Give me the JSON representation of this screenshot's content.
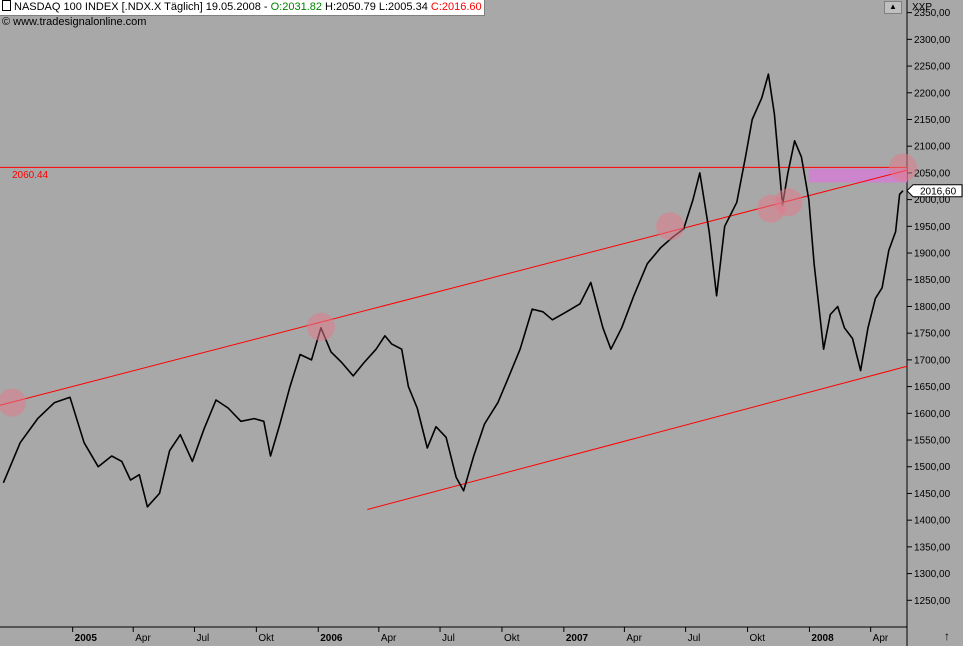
{
  "header": {
    "instrument": "NASDAQ 100 INDEX [.NDX.X  Täglich]",
    "date": "19.05.2008 -",
    "open": "O:2031.82",
    "high": "H:2050.79",
    "low": "L:2005.34",
    "close": "C:2016.60"
  },
  "source": "© www.tradesignalonline.com",
  "axis_tag": "XXP",
  "level_label": "2060.44",
  "colors": {
    "background": "#a8a8a8",
    "price": "#000000",
    "trendlines": "#ff0000",
    "markers": "#e07a8a",
    "zone": "#d27fd2"
  },
  "chart_data": {
    "type": "line",
    "title": "",
    "xlabel": "",
    "ylabel": "",
    "ylim": [
      1200,
      2385
    ],
    "yticks": [
      "1250,00",
      "1300,00",
      "1350,00",
      "1400,00",
      "1450,00",
      "1500,00",
      "1550,00",
      "1600,00",
      "1650,00",
      "1700,00",
      "1750,00",
      "1800,00",
      "1850,00",
      "1900,00",
      "1950,00",
      "2000,00",
      "2050,00",
      "2100,00",
      "2150,00",
      "2200,00",
      "2250,00",
      "2300,00",
      "2350,00"
    ],
    "ytick_values": [
      1250,
      1300,
      1350,
      1400,
      1450,
      1500,
      1550,
      1600,
      1650,
      1700,
      1750,
      1800,
      1850,
      1900,
      1950,
      2000,
      2050,
      2100,
      2150,
      2200,
      2250,
      2300,
      2350
    ],
    "xticks": [
      {
        "label": "2005",
        "date": "2005-01-01",
        "bold": true
      },
      {
        "label": "Apr",
        "date": "2005-04-01",
        "bold": false
      },
      {
        "label": "Jul",
        "date": "2005-07-01",
        "bold": false
      },
      {
        "label": "Okt",
        "date": "2005-10-01",
        "bold": false
      },
      {
        "label": "2006",
        "date": "2006-01-01",
        "bold": true
      },
      {
        "label": "Apr",
        "date": "2006-04-01",
        "bold": false
      },
      {
        "label": "Jul",
        "date": "2006-07-01",
        "bold": false
      },
      {
        "label": "Okt",
        "date": "2006-10-01",
        "bold": false
      },
      {
        "label": "2007",
        "date": "2007-01-01",
        "bold": true
      },
      {
        "label": "Apr",
        "date": "2007-04-01",
        "bold": false
      },
      {
        "label": "Jul",
        "date": "2007-07-01",
        "bold": false
      },
      {
        "label": "Okt",
        "date": "2007-10-01",
        "bold": false
      },
      {
        "label": "2008",
        "date": "2008-01-01",
        "bold": true
      },
      {
        "label": "Apr",
        "date": "2008-04-01",
        "bold": false
      }
    ],
    "series": [
      {
        "values": [
          [
            "2004-09-20",
            1470
          ],
          [
            "2004-10-15",
            1545
          ],
          [
            "2004-11-10",
            1590
          ],
          [
            "2004-12-05",
            1620
          ],
          [
            "2004-12-28",
            1630
          ],
          [
            "2005-01-18",
            1545
          ],
          [
            "2005-02-08",
            1500
          ],
          [
            "2005-02-28",
            1520
          ],
          [
            "2005-03-15",
            1510
          ],
          [
            "2005-03-28",
            1475
          ],
          [
            "2005-04-10",
            1485
          ],
          [
            "2005-04-22",
            1425
          ],
          [
            "2005-05-10",
            1450
          ],
          [
            "2005-05-25",
            1530
          ],
          [
            "2005-06-10",
            1560
          ],
          [
            "2005-06-28",
            1510
          ],
          [
            "2005-07-15",
            1570
          ],
          [
            "2005-08-02",
            1625
          ],
          [
            "2005-08-20",
            1610
          ],
          [
            "2005-09-08",
            1585
          ],
          [
            "2005-09-28",
            1590
          ],
          [
            "2005-10-12",
            1585
          ],
          [
            "2005-10-22",
            1520
          ],
          [
            "2005-11-05",
            1580
          ],
          [
            "2005-11-20",
            1650
          ],
          [
            "2005-12-05",
            1710
          ],
          [
            "2005-12-22",
            1700
          ],
          [
            "2006-01-05",
            1760
          ],
          [
            "2006-01-20",
            1715
          ],
          [
            "2006-02-05",
            1695
          ],
          [
            "2006-02-22",
            1670
          ],
          [
            "2006-03-10",
            1695
          ],
          [
            "2006-03-28",
            1720
          ],
          [
            "2006-04-10",
            1745
          ],
          [
            "2006-04-20",
            1730
          ],
          [
            "2006-05-05",
            1720
          ],
          [
            "2006-05-15",
            1650
          ],
          [
            "2006-05-28",
            1610
          ],
          [
            "2006-06-12",
            1535
          ],
          [
            "2006-06-25",
            1575
          ],
          [
            "2006-07-10",
            1555
          ],
          [
            "2006-07-25",
            1480
          ],
          [
            "2006-08-05",
            1455
          ],
          [
            "2006-08-20",
            1520
          ],
          [
            "2006-09-05",
            1580
          ],
          [
            "2006-09-25",
            1620
          ],
          [
            "2006-10-10",
            1665
          ],
          [
            "2006-10-28",
            1720
          ],
          [
            "2006-11-15",
            1795
          ],
          [
            "2006-12-01",
            1790
          ],
          [
            "2006-12-15",
            1775
          ],
          [
            "2007-01-05",
            1790
          ],
          [
            "2007-01-25",
            1805
          ],
          [
            "2007-02-10",
            1845
          ],
          [
            "2007-02-28",
            1760
          ],
          [
            "2007-03-12",
            1720
          ],
          [
            "2007-03-28",
            1760
          ],
          [
            "2007-04-15",
            1820
          ],
          [
            "2007-05-05",
            1880
          ],
          [
            "2007-05-25",
            1910
          ],
          [
            "2007-06-12",
            1930
          ],
          [
            "2007-06-28",
            1945
          ],
          [
            "2007-07-12",
            2000
          ],
          [
            "2007-07-22",
            2050
          ],
          [
            "2007-08-05",
            1940
          ],
          [
            "2007-08-16",
            1820
          ],
          [
            "2007-08-28",
            1950
          ],
          [
            "2007-09-15",
            1995
          ],
          [
            "2007-09-28",
            2080
          ],
          [
            "2007-10-08",
            2150
          ],
          [
            "2007-10-22",
            2190
          ],
          [
            "2007-11-01",
            2235
          ],
          [
            "2007-11-10",
            2160
          ],
          [
            "2007-11-22",
            1990
          ],
          [
            "2007-11-30",
            2050
          ],
          [
            "2007-12-10",
            2110
          ],
          [
            "2007-12-20",
            2080
          ],
          [
            "2007-12-31",
            2000
          ],
          [
            "2008-01-08",
            1880
          ],
          [
            "2008-01-22",
            1720
          ],
          [
            "2008-02-01",
            1785
          ],
          [
            "2008-02-12",
            1800
          ],
          [
            "2008-02-22",
            1760
          ],
          [
            "2008-03-05",
            1740
          ],
          [
            "2008-03-17",
            1680
          ],
          [
            "2008-03-28",
            1760
          ],
          [
            "2008-04-08",
            1815
          ],
          [
            "2008-04-18",
            1835
          ],
          [
            "2008-04-28",
            1905
          ],
          [
            "2008-05-08",
            1940
          ],
          [
            "2008-05-14",
            2010
          ],
          [
            "2008-05-19",
            2016.6
          ]
        ]
      }
    ],
    "trendlines": [
      {
        "start": [
          "2004-09-15",
          1615
        ],
        "end": [
          "2008-05-25",
          2055
        ]
      },
      {
        "start": [
          "2006-03-15",
          1420
        ],
        "end": [
          "2008-05-25",
          1688
        ]
      }
    ],
    "horizontal_level": 2060.44,
    "last_price": {
      "value": 2016.6,
      "label": "2016,60"
    },
    "zone": {
      "start": "2007-12-31",
      "end": "2008-05-19",
      "low": 2032,
      "high": 2058
    },
    "markers": [
      {
        "date": "2004-10-03",
        "value": 1620
      },
      {
        "date": "2006-01-05",
        "value": 1762
      },
      {
        "date": "2007-06-08",
        "value": 1950
      },
      {
        "date": "2007-11-05",
        "value": 1983
      },
      {
        "date": "2007-12-01",
        "value": 1995
      },
      {
        "date": "2008-05-19",
        "value": 2060
      }
    ]
  }
}
